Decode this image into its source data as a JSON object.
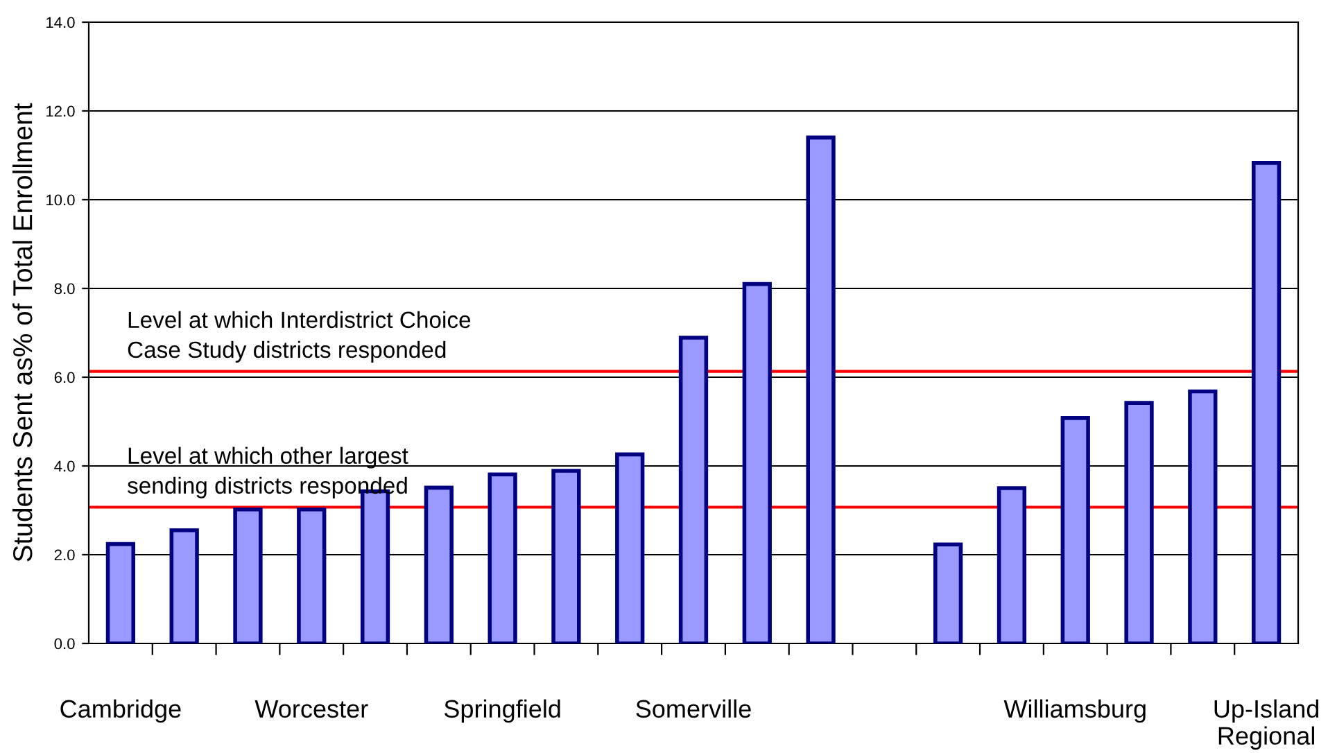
{
  "chart_data": {
    "type": "bar",
    "ylabel": "Students Sent as% of Total Enrollment",
    "categories": [
      "Cambridge",
      null,
      null,
      "Worcester",
      null,
      null,
      "Springfield",
      null,
      null,
      "Somerville",
      null,
      null,
      null,
      null,
      null,
      "Williamsburg",
      null,
      null,
      "Up-Island\nRegional"
    ],
    "values": [
      2.24,
      2.55,
      3.02,
      3.02,
      3.43,
      3.51,
      3.81,
      3.89,
      4.26,
      6.89,
      8.1,
      11.4,
      null,
      2.23,
      3.5,
      5.08,
      5.42,
      5.68,
      10.83
    ],
    "color": "#9999ff",
    "ylim": [
      0,
      14
    ],
    "yticks": [
      {
        "value": 0,
        "label": "0.0"
      },
      {
        "value": 2,
        "label": "2.0"
      },
      {
        "value": 4,
        "label": "4.0"
      },
      {
        "value": 6,
        "label": "6.0"
      },
      {
        "value": 8,
        "label": "8.0"
      },
      {
        "value": 10,
        "label": "10.0"
      },
      {
        "value": 12,
        "label": "12.0"
      },
      {
        "value": 14,
        "label": "14.0"
      }
    ],
    "grid": "y",
    "ref_lines": [
      {
        "axis": "y",
        "value": 6.13,
        "label": "Level at which Interdistrict Choice\nCase Study districts responded",
        "color": "#ff0000"
      },
      {
        "axis": "y",
        "value": 3.07,
        "label": "Level at which other largest\nsending districts responded",
        "color": "#ff0000"
      }
    ]
  }
}
